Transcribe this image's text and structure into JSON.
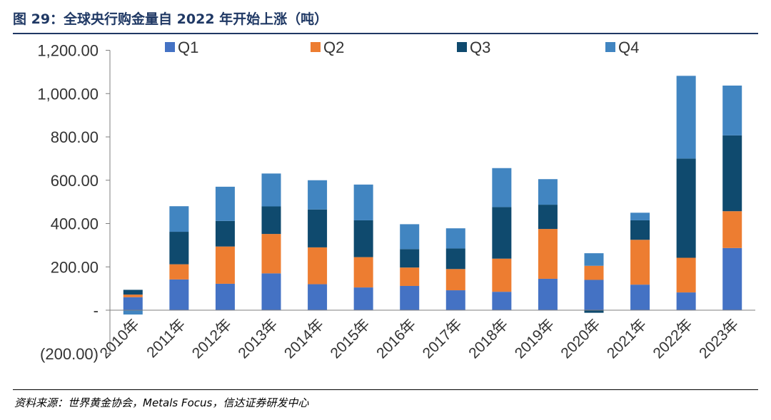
{
  "header": {
    "title": "图 29：全球央行购金量自 2022 年开始上涨（吨）"
  },
  "footer": {
    "source": "资料来源：世界黄金协会，Metals Focus，信达证券研发中心"
  },
  "chart_data": {
    "type": "bar",
    "stacked": true,
    "title": "",
    "xlabel": "",
    "ylabel": "",
    "ylim": [
      -200,
      1200
    ],
    "yticks": [
      -200,
      0,
      200,
      400,
      600,
      800,
      1000,
      1200
    ],
    "ytick_labels": [
      "(200.00)",
      "-",
      "200.00",
      "400.00",
      "600.00",
      "800.00",
      "1,000.00",
      "1,200.00"
    ],
    "grid": false,
    "legend_position": "top",
    "categories": [
      "2010年",
      "2011年",
      "2012年",
      "2013年",
      "2014年",
      "2015年",
      "2016年",
      "2017年",
      "2018年",
      "2019年",
      "2020年",
      "2021年",
      "2022年",
      "2023年"
    ],
    "series": [
      {
        "name": "Q1",
        "color": "#4472c4",
        "values": [
          60,
          142,
          122,
          170,
          120,
          105,
          112,
          92,
          85,
          145,
          140,
          118,
          82,
          287
        ]
      },
      {
        "name": "Q2",
        "color": "#ed7d31",
        "values": [
          12,
          70,
          172,
          182,
          170,
          140,
          85,
          98,
          153,
          230,
          65,
          207,
          160,
          170
        ]
      },
      {
        "name": "Q3",
        "color": "#0f4a6e",
        "values": [
          22,
          150,
          118,
          127,
          175,
          170,
          85,
          95,
          238,
          112,
          -12,
          90,
          458,
          350
        ]
      },
      {
        "name": "Q4",
        "color": "#4185c1",
        "values": [
          -20,
          118,
          158,
          152,
          135,
          165,
          115,
          93,
          180,
          118,
          58,
          35,
          382,
          230
        ]
      }
    ]
  }
}
